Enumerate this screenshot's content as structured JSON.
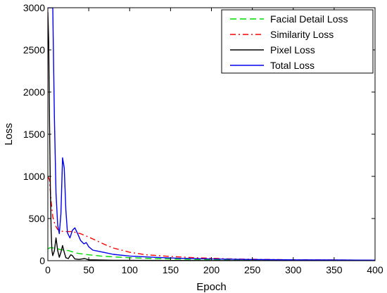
{
  "chart_data": {
    "type": "line",
    "title": "",
    "xlabel": "Epoch",
    "ylabel": "Loss",
    "xlim": [
      0,
      400
    ],
    "ylim": [
      0,
      3000
    ],
    "xticks": [
      0,
      50,
      100,
      150,
      200,
      250,
      300,
      350,
      400
    ],
    "yticks": [
      0,
      500,
      1000,
      1500,
      2000,
      2500,
      3000
    ],
    "grid": false,
    "legend_position": "top-right",
    "series": [
      {
        "name": "Facial Detail Loss",
        "color": "#00dd00",
        "style": "dashed",
        "points": [
          [
            0,
            140
          ],
          [
            3,
            155
          ],
          [
            8,
            150
          ],
          [
            12,
            140
          ],
          [
            16,
            130
          ],
          [
            20,
            125
          ],
          [
            25,
            120
          ],
          [
            30,
            105
          ],
          [
            35,
            90
          ],
          [
            45,
            75
          ],
          [
            55,
            65
          ],
          [
            65,
            55
          ],
          [
            80,
            45
          ],
          [
            100,
            35
          ],
          [
            130,
            25
          ],
          [
            160,
            18
          ],
          [
            200,
            12
          ],
          [
            250,
            8
          ],
          [
            300,
            6
          ],
          [
            350,
            5
          ],
          [
            400,
            4
          ]
        ]
      },
      {
        "name": "Similarity Loss",
        "color": "#ff0000",
        "style": "dashdot",
        "points": [
          [
            0,
            1000
          ],
          [
            2,
            960
          ],
          [
            4,
            700
          ],
          [
            6,
            520
          ],
          [
            9,
            420
          ],
          [
            12,
            370
          ],
          [
            16,
            350
          ],
          [
            22,
            345
          ],
          [
            30,
            345
          ],
          [
            40,
            320
          ],
          [
            50,
            280
          ],
          [
            60,
            235
          ],
          [
            70,
            190
          ],
          [
            80,
            150
          ],
          [
            100,
            100
          ],
          [
            120,
            70
          ],
          [
            150,
            50
          ],
          [
            180,
            35
          ],
          [
            220,
            22
          ],
          [
            260,
            15
          ],
          [
            300,
            10
          ],
          [
            350,
            8
          ],
          [
            400,
            6
          ]
        ]
      },
      {
        "name": "Pixel Loss",
        "color": "#000000",
        "style": "solid",
        "points": [
          [
            0,
            2950
          ],
          [
            1,
            2600
          ],
          [
            2,
            1700
          ],
          [
            3,
            900
          ],
          [
            4,
            350
          ],
          [
            5,
            120
          ],
          [
            6,
            60
          ],
          [
            8,
            120
          ],
          [
            10,
            270
          ],
          [
            12,
            120
          ],
          [
            14,
            40
          ],
          [
            16,
            100
          ],
          [
            18,
            180
          ],
          [
            20,
            100
          ],
          [
            22,
            35
          ],
          [
            25,
            25
          ],
          [
            28,
            70
          ],
          [
            30,
            60
          ],
          [
            33,
            20
          ],
          [
            38,
            15
          ],
          [
            45,
            25
          ],
          [
            50,
            10
          ],
          [
            60,
            8
          ],
          [
            80,
            5
          ],
          [
            120,
            3
          ],
          [
            200,
            2
          ],
          [
            300,
            1
          ],
          [
            400,
            1
          ]
        ]
      },
      {
        "name": "Total Loss",
        "color": "#0000ee",
        "style": "solid",
        "points": [
          [
            0,
            3000
          ],
          [
            6,
            3000
          ],
          [
            8,
            1700
          ],
          [
            10,
            800
          ],
          [
            12,
            420
          ],
          [
            14,
            320
          ],
          [
            16,
            560
          ],
          [
            18,
            1220
          ],
          [
            20,
            1100
          ],
          [
            22,
            600
          ],
          [
            24,
            330
          ],
          [
            27,
            270
          ],
          [
            30,
            360
          ],
          [
            33,
            390
          ],
          [
            36,
            330
          ],
          [
            40,
            240
          ],
          [
            44,
            200
          ],
          [
            47,
            215
          ],
          [
            50,
            165
          ],
          [
            55,
            125
          ],
          [
            60,
            115
          ],
          [
            70,
            95
          ],
          [
            80,
            75
          ],
          [
            100,
            55
          ],
          [
            130,
            40
          ],
          [
            160,
            28
          ],
          [
            200,
            20
          ],
          [
            250,
            14
          ],
          [
            300,
            10
          ],
          [
            350,
            8
          ],
          [
            400,
            6
          ]
        ]
      }
    ]
  }
}
